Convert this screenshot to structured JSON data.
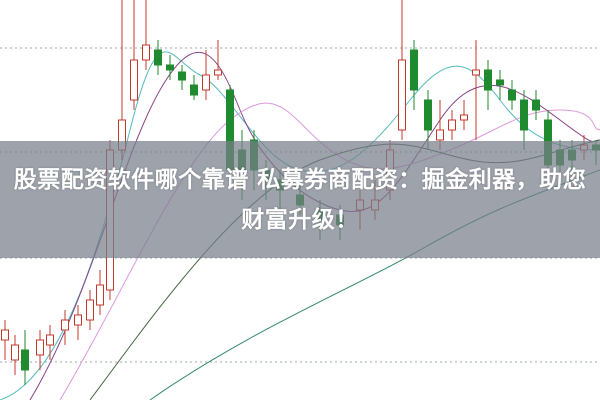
{
  "article": {
    "title": "股票配资软件哪个靠谱 私募券商配资：掘金利器，助您财富升级！"
  },
  "colors": {
    "up_candle": "#c0392b",
    "down_candle": "#1f8a2e",
    "overlay": "#787e8a"
  }
}
